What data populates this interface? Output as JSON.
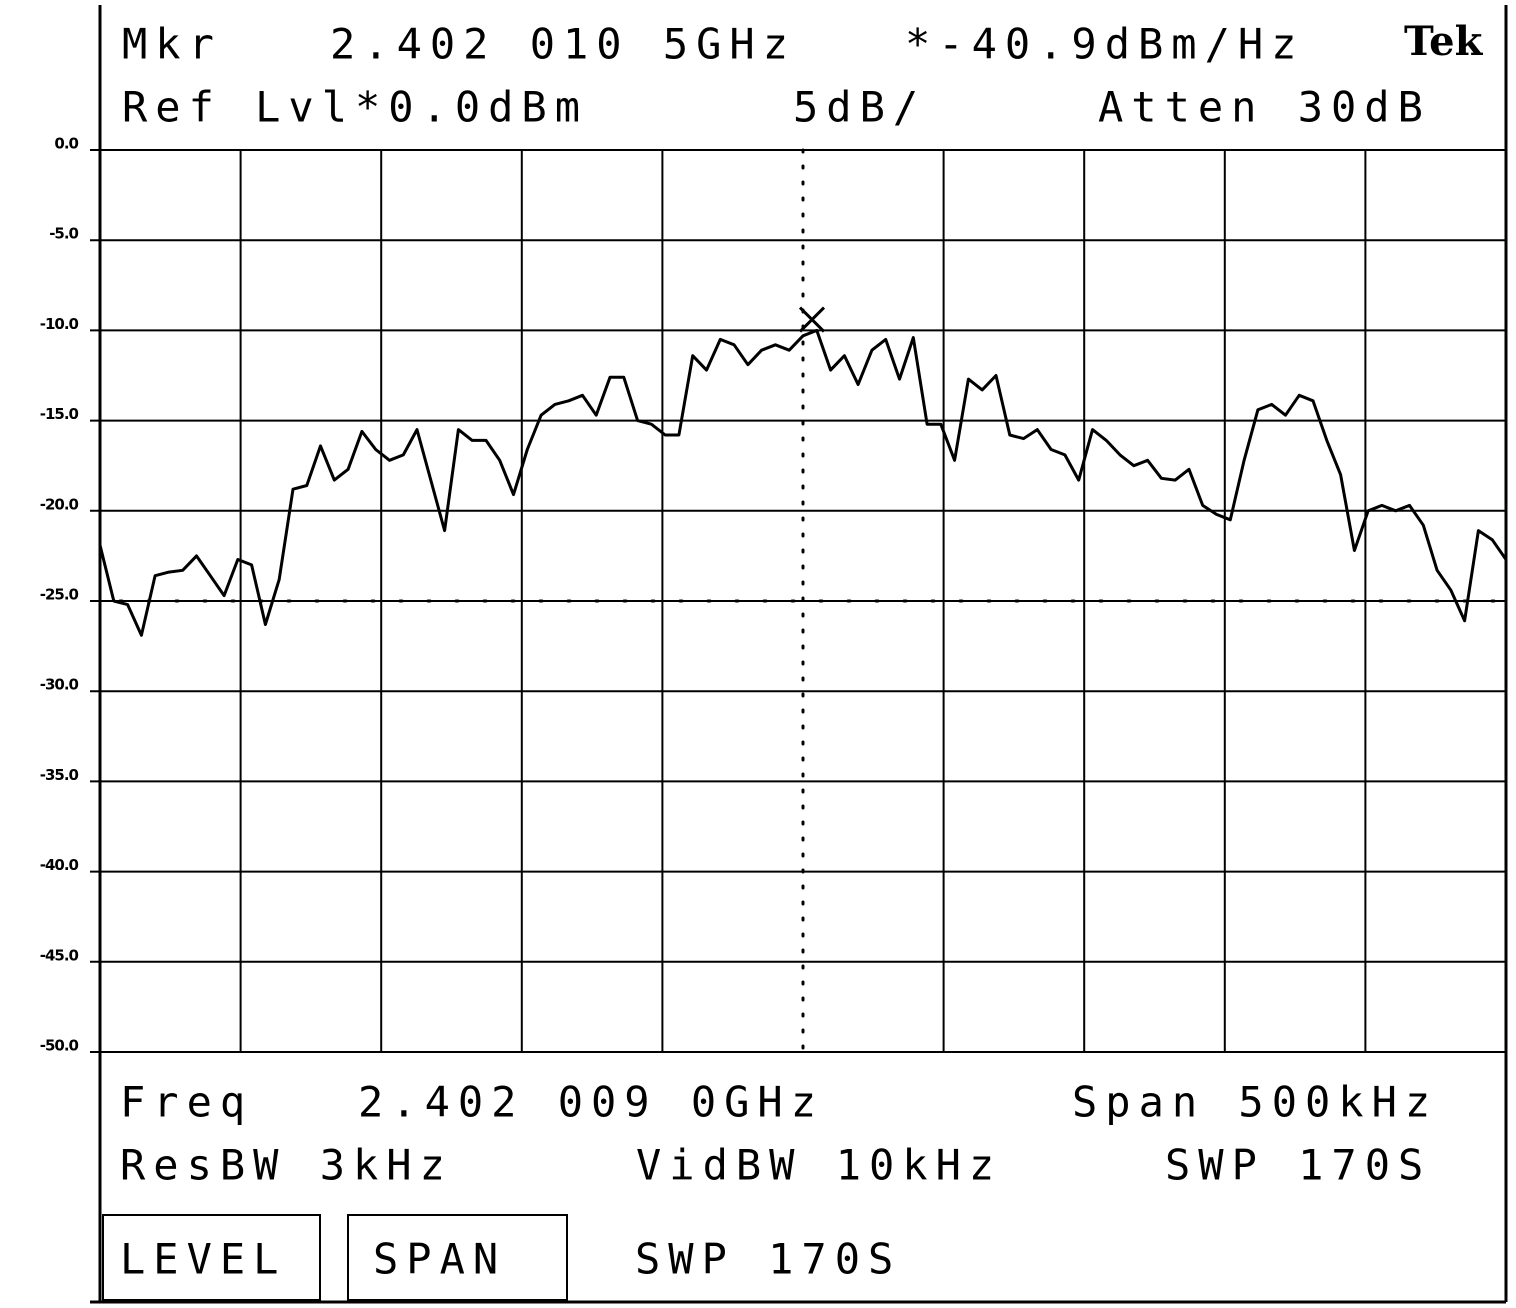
{
  "chart_data": {
    "type": "line",
    "header": {
      "marker_label": "Mkr",
      "marker_freq": "2.402 010 5GHz",
      "marker_level": "*-40.9dBm/Hz",
      "brand": "Tek",
      "ref_level": "Ref Lvl*0.0dBm",
      "scale": "5dB/",
      "attenuation": "Atten 30dB"
    },
    "footer": {
      "freq_label": "Freq",
      "center_freq": "2.402 009 0GHz",
      "span": "Span 500kHz",
      "res_bw": "ResBW 3kHz",
      "vid_bw": "VidBW 10kHz",
      "sweep": "SWP 170S"
    },
    "buttons": [
      "LEVEL",
      "SPAN",
      "SWP 170S"
    ],
    "color": "#000000",
    "ylim": [
      -50,
      0
    ],
    "yticks": [
      {
        "value": 0,
        "label": "0.0"
      },
      {
        "value": -5,
        "label": "-5.0"
      },
      {
        "value": -10,
        "label": "-10.0"
      },
      {
        "value": -15,
        "label": "-15.0"
      },
      {
        "value": -20,
        "label": "-20.0"
      },
      {
        "value": -25,
        "label": "-25.0"
      },
      {
        "value": -30,
        "label": "-30.0"
      },
      {
        "value": -35,
        "label": "-35.0"
      },
      {
        "value": -40,
        "label": "-40.0"
      },
      {
        "value": -45,
        "label": "-45.0"
      },
      {
        "value": -50,
        "label": "-50.0"
      }
    ],
    "grid": true,
    "display_line": -25,
    "marker": -9.4,
    "values": [
      -21.9,
      -25.0,
      -25.2,
      -26.9,
      -23.6,
      -23.4,
      -23.3,
      -22.5,
      -23.6,
      -24.7,
      -22.7,
      -23.0,
      -26.3,
      -23.8,
      -18.8,
      -18.6,
      -16.4,
      -18.3,
      -17.7,
      -15.6,
      -16.6,
      -17.2,
      -16.9,
      -15.5,
      -18.3,
      -21.1,
      -15.5,
      -16.1,
      -16.1,
      -17.2,
      -19.1,
      -16.6,
      -14.7,
      -14.1,
      -13.9,
      -13.6,
      -14.7,
      -12.6,
      -12.6,
      -15.0,
      -15.2,
      -15.8,
      -15.8,
      -11.4,
      -12.2,
      -10.5,
      -10.8,
      -11.9,
      -11.1,
      -10.8,
      -11.1,
      -10.3,
      -10.0,
      -12.2,
      -11.4,
      -13.0,
      -11.1,
      -10.5,
      -12.7,
      -10.4,
      -15.2,
      -15.2,
      -17.2,
      -12.7,
      -13.3,
      -12.5,
      -15.8,
      -16.0,
      -15.5,
      -16.6,
      -16.9,
      -18.3,
      -15.5,
      -16.1,
      -16.9,
      -17.5,
      -17.2,
      -18.2,
      -18.3,
      -17.7,
      -19.7,
      -20.2,
      -20.5,
      -17.2,
      -14.4,
      -14.1,
      -14.7,
      -13.6,
      -13.9,
      -16.1,
      -18.0,
      -22.2,
      -20.0,
      -19.7,
      -20.0,
      -19.7,
      -20.8,
      -23.3,
      -24.4,
      -26.1,
      -21.1,
      -21.6,
      -22.7
    ]
  }
}
